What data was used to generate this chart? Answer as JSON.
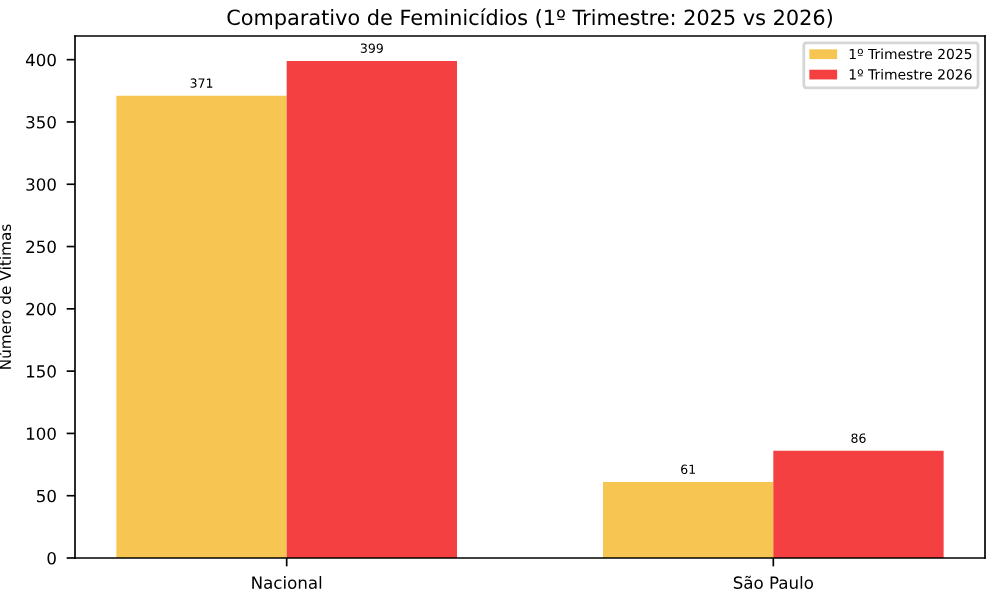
{
  "chart_data": {
    "type": "bar",
    "title": "Comparativo de Feminicídios (1º Trimestre: 2025 vs 2026)",
    "ylabel": "Número de Vítimas",
    "categories": [
      "Nacional",
      "São Paulo"
    ],
    "series": [
      {
        "name": "1º Trimestre 2025",
        "color": "#f7c552",
        "values": [
          371,
          61
        ]
      },
      {
        "name": "1º Trimestre 2026",
        "color": "#f44040",
        "values": [
          399,
          86
        ]
      }
    ],
    "ylim": [
      0,
      419
    ],
    "yticks": [
      0,
      50,
      100,
      150,
      200,
      250,
      300,
      350,
      400
    ],
    "data_labels": true,
    "legend": "top right"
  }
}
